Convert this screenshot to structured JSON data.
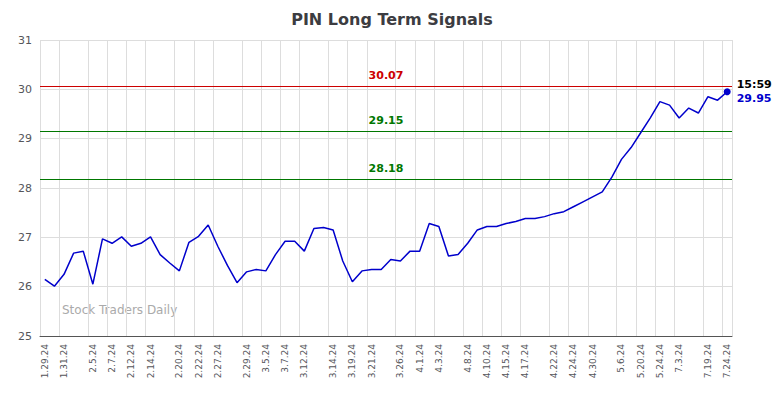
{
  "chart_data": {
    "type": "line",
    "title": "PIN Long Term Signals",
    "color": "#0000cc",
    "categories": [
      "1.29.24",
      null,
      "1.31.24",
      null,
      null,
      "2.5.24",
      null,
      "2.7.24",
      null,
      "2.12.24",
      null,
      "2.14.24",
      null,
      null,
      "2.20.24",
      null,
      "2.22.24",
      null,
      "2.27.24",
      null,
      null,
      "2.29.24",
      null,
      "3.5.24",
      null,
      "3.7.24",
      null,
      "3.12.24",
      null,
      null,
      "3.14.24",
      null,
      "3.19.24",
      null,
      "3.21.24",
      null,
      null,
      "3.26.24",
      null,
      "4.1.24",
      null,
      "4.3.24",
      null,
      null,
      "4.8.24",
      null,
      "4.10.24",
      null,
      "4.15.24",
      null,
      "4.17.24",
      null,
      null,
      "4.22.24",
      null,
      "4.24.24",
      null,
      "4.30.24",
      null,
      null,
      "5.6.24",
      null,
      "5.20.24",
      null,
      "5.24.24",
      null,
      "7.3.24",
      null,
      null,
      "7.19.24",
      null,
      "7.24.24"
    ],
    "values": [
      26.15,
      26.01,
      26.25,
      26.68,
      26.72,
      26.05,
      26.97,
      26.88,
      27.01,
      26.82,
      26.88,
      27.01,
      26.65,
      26.48,
      26.32,
      26.9,
      27.02,
      27.25,
      26.82,
      26.43,
      26.08,
      26.3,
      26.35,
      26.32,
      26.65,
      26.92,
      26.92,
      26.72,
      27.18,
      27.2,
      27.15,
      26.52,
      26.1,
      26.32,
      26.35,
      26.35,
      26.55,
      26.52,
      26.72,
      26.72,
      27.28,
      27.22,
      26.62,
      26.65,
      26.88,
      27.15,
      27.22,
      27.22,
      27.28,
      27.32,
      27.38,
      27.38,
      27.42,
      27.48,
      27.52,
      27.62,
      27.72,
      27.82,
      27.92,
      28.22,
      28.58,
      28.82,
      29.12,
      29.42,
      29.75,
      29.68,
      29.42,
      29.62,
      29.52,
      29.85,
      29.78,
      29.95
    ],
    "ylim": [
      25,
      31
    ],
    "yticks": [
      25,
      26,
      27,
      28,
      29,
      30,
      31
    ],
    "grid": true,
    "reference_lines": [
      {
        "value": 30.07,
        "label": "30.07",
        "color": "#cc0000"
      },
      {
        "value": 29.15,
        "label": "29.15",
        "color": "#007700"
      },
      {
        "value": 28.18,
        "label": "28.18",
        "color": "#007700"
      }
    ],
    "annotations": [
      "15:59",
      "29.95"
    ],
    "watermark": "Stock Traders Daily"
  }
}
